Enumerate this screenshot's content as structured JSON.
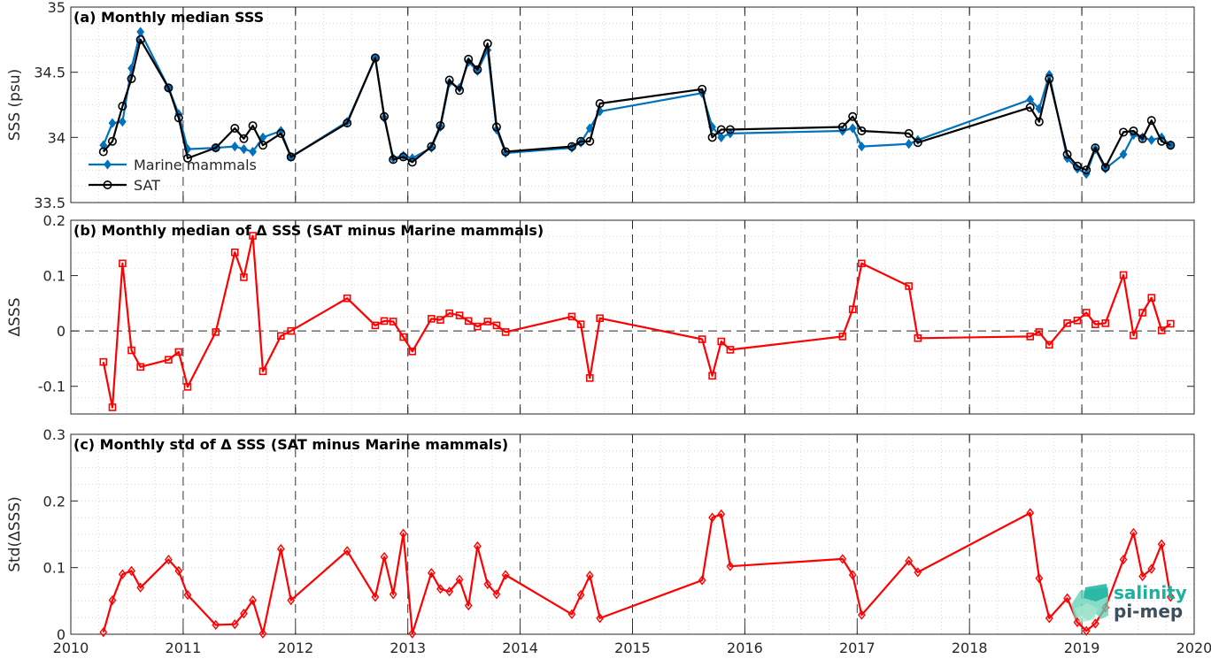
{
  "chart_data": [
    {
      "type": "line",
      "title": "(a) Monthly median SSS",
      "ylabel": "SSS (psu)",
      "xlim": [
        2010,
        2020
      ],
      "ylim": [
        33.5,
        35
      ],
      "yticks": [
        33.5,
        34,
        34.5,
        35
      ],
      "ytick_labels": [
        "33.5",
        "34",
        "34.5",
        "35"
      ],
      "grid": true,
      "legend": "bottom-left",
      "series": [
        {
          "name": "Marine mammals",
          "color": "#0072BD",
          "marker": "diamond",
          "x": [
            2010.29,
            2010.37,
            2010.46,
            2010.54,
            2010.62,
            2010.87,
            2010.96,
            2011.04,
            2011.29,
            2011.46,
            2011.54,
            2011.62,
            2011.71,
            2011.87,
            2011.96,
            2012.46,
            2012.71,
            2012.79,
            2012.87,
            2012.96,
            2013.04,
            2013.21,
            2013.29,
            2013.37,
            2013.46,
            2013.54,
            2013.62,
            2013.71,
            2013.79,
            2013.87,
            2014.46,
            2014.54,
            2014.62,
            2014.71,
            2015.62,
            2015.71,
            2015.79,
            2015.87,
            2016.87,
            2016.96,
            2017.04,
            2017.46,
            2017.54,
            2018.54,
            2018.62,
            2018.71,
            2018.87,
            2018.96,
            2019.04,
            2019.12,
            2019.21,
            2019.37,
            2019.46,
            2019.54,
            2019.62,
            2019.71,
            2019.79
          ],
          "y": [
            33.94,
            34.11,
            34.12,
            34.53,
            34.81,
            34.38,
            34.18,
            33.91,
            33.92,
            33.93,
            33.91,
            33.89,
            34.0,
            34.05,
            33.85,
            34.12,
            34.61,
            34.15,
            33.84,
            33.86,
            33.84,
            33.92,
            34.08,
            34.42,
            34.38,
            34.58,
            34.51,
            34.67,
            34.06,
            33.88,
            33.92,
            33.96,
            34.07,
            34.2,
            34.34,
            34.08,
            34.0,
            34.03,
            34.05,
            34.07,
            33.93,
            33.95,
            33.98,
            34.29,
            34.22,
            34.48,
            33.84,
            33.76,
            33.72,
            33.91,
            33.76,
            33.87,
            34.02,
            34.0,
            33.98,
            34.0,
            33.94
          ]
        },
        {
          "name": "SAT",
          "color": "#000000",
          "marker": "circle",
          "x": [
            2010.29,
            2010.37,
            2010.46,
            2010.54,
            2010.62,
            2010.87,
            2010.96,
            2011.04,
            2011.29,
            2011.46,
            2011.54,
            2011.62,
            2011.71,
            2011.87,
            2011.96,
            2012.46,
            2012.71,
            2012.79,
            2012.87,
            2012.96,
            2013.04,
            2013.21,
            2013.29,
            2013.37,
            2013.46,
            2013.54,
            2013.62,
            2013.71,
            2013.79,
            2013.87,
            2014.46,
            2014.54,
            2014.62,
            2014.71,
            2015.62,
            2015.71,
            2015.79,
            2015.87,
            2016.87,
            2016.96,
            2017.04,
            2017.46,
            2017.54,
            2018.54,
            2018.62,
            2018.71,
            2018.87,
            2018.96,
            2019.04,
            2019.12,
            2019.21,
            2019.37,
            2019.46,
            2019.54,
            2019.62,
            2019.71,
            2019.79
          ],
          "y": [
            33.89,
            33.97,
            34.24,
            34.45,
            34.75,
            34.38,
            34.15,
            33.84,
            33.92,
            34.07,
            33.99,
            34.09,
            33.94,
            34.03,
            33.85,
            34.11,
            34.61,
            34.16,
            33.83,
            33.85,
            33.81,
            33.93,
            34.09,
            34.44,
            34.36,
            34.6,
            34.52,
            34.72,
            34.08,
            33.89,
            33.93,
            33.97,
            33.97,
            34.26,
            34.37,
            34.0,
            34.06,
            34.06,
            34.08,
            34.16,
            34.05,
            34.03,
            33.96,
            34.23,
            34.12,
            34.45,
            33.87,
            33.78,
            33.75,
            33.92,
            33.77,
            34.04,
            34.05,
            33.99,
            34.13,
            33.97,
            33.94
          ]
        }
      ]
    },
    {
      "type": "line",
      "title": "(b) Monthly median of Δ SSS (SAT minus Marine mammals)",
      "ylabel": "ΔSSS",
      "xlim": [
        2010,
        2020
      ],
      "ylim": [
        -0.15,
        0.2
      ],
      "yticks": [
        -0.1,
        0,
        0.1,
        0.2
      ],
      "ytick_labels": [
        "-0.1",
        "0",
        "0.1",
        "0.2"
      ],
      "grid": true,
      "series": [
        {
          "color": "#FF0000",
          "marker": "square",
          "x": [
            2010.29,
            2010.37,
            2010.46,
            2010.54,
            2010.62,
            2010.87,
            2010.96,
            2011.04,
            2011.29,
            2011.46,
            2011.54,
            2011.62,
            2011.71,
            2011.87,
            2011.96,
            2012.46,
            2012.71,
            2012.79,
            2012.87,
            2012.96,
            2013.04,
            2013.21,
            2013.29,
            2013.37,
            2013.46,
            2013.54,
            2013.62,
            2013.71,
            2013.79,
            2013.87,
            2014.46,
            2014.54,
            2014.62,
            2014.71,
            2015.62,
            2015.71,
            2015.79,
            2015.87,
            2016.87,
            2016.96,
            2017.04,
            2017.46,
            2017.54,
            2018.54,
            2018.62,
            2018.71,
            2018.87,
            2018.96,
            2019.04,
            2019.12,
            2019.21,
            2019.37,
            2019.46,
            2019.54,
            2019.62,
            2019.71,
            2019.79
          ],
          "y": [
            -0.056,
            -0.138,
            0.122,
            -0.035,
            -0.065,
            -0.052,
            -0.038,
            -0.101,
            -0.002,
            0.142,
            0.097,
            0.172,
            -0.073,
            -0.009,
            0.0,
            0.059,
            0.01,
            0.018,
            0.017,
            -0.011,
            -0.037,
            0.022,
            0.02,
            0.032,
            0.028,
            0.018,
            0.008,
            0.017,
            0.01,
            -0.002,
            0.026,
            0.012,
            -0.085,
            0.023,
            -0.015,
            -0.081,
            -0.019,
            -0.034,
            -0.01,
            0.039,
            0.122,
            0.081,
            -0.013,
            -0.01,
            -0.002,
            -0.025,
            0.014,
            0.019,
            0.033,
            0.012,
            0.014,
            0.101,
            -0.008,
            0.033,
            0.06,
            0.001,
            0.013
          ]
        }
      ]
    },
    {
      "type": "line",
      "title": "(c) Monthly std of Δ SSS (SAT minus Marine mammals)",
      "ylabel": "Std(ΔSSS)",
      "xlabel": "",
      "xlim": [
        2010,
        2020
      ],
      "ylim": [
        0,
        0.3
      ],
      "yticks": [
        0,
        0.1,
        0.2,
        0.3
      ],
      "ytick_labels": [
        "0",
        "0.1",
        "0.2",
        "0.3"
      ],
      "xticks": [
        2010,
        2011,
        2012,
        2013,
        2014,
        2015,
        2016,
        2017,
        2018,
        2019,
        2020
      ],
      "xtick_labels": [
        "2010",
        "2011",
        "2012",
        "2013",
        "2014",
        "2015",
        "2016",
        "2017",
        "2018",
        "2019",
        "2020"
      ],
      "grid": true,
      "series": [
        {
          "color": "#FF0000",
          "marker": "diamond",
          "x": [
            2010.29,
            2010.37,
            2010.46,
            2010.54,
            2010.62,
            2010.87,
            2010.96,
            2011.04,
            2011.29,
            2011.46,
            2011.54,
            2011.62,
            2011.71,
            2011.87,
            2011.96,
            2012.46,
            2012.71,
            2012.79,
            2012.87,
            2012.96,
            2013.04,
            2013.21,
            2013.29,
            2013.37,
            2013.46,
            2013.54,
            2013.62,
            2013.71,
            2013.79,
            2013.87,
            2014.46,
            2014.54,
            2014.62,
            2014.71,
            2015.62,
            2015.71,
            2015.79,
            2015.87,
            2016.87,
            2016.96,
            2017.04,
            2017.46,
            2017.54,
            2018.54,
            2018.62,
            2018.71,
            2018.87,
            2018.96,
            2019.04,
            2019.12,
            2019.21,
            2019.37,
            2019.46,
            2019.54,
            2019.62,
            2019.71,
            2019.79
          ],
          "y": [
            0.003,
            0.051,
            0.09,
            0.095,
            0.07,
            0.112,
            0.095,
            0.059,
            0.014,
            0.015,
            0.031,
            0.051,
            0.001,
            0.128,
            0.051,
            0.125,
            0.056,
            0.116,
            0.06,
            0.151,
            0.001,
            0.092,
            0.068,
            0.064,
            0.082,
            0.043,
            0.132,
            0.075,
            0.06,
            0.089,
            0.03,
            0.059,
            0.088,
            0.024,
            0.081,
            0.175,
            0.18,
            0.102,
            0.113,
            0.089,
            0.029,
            0.11,
            0.093,
            0.182,
            0.084,
            0.024,
            0.054,
            0.018,
            0.005,
            0.016,
            0.04,
            0.112,
            0.152,
            0.087,
            0.098,
            0.135,
            0.056
          ]
        }
      ]
    }
  ],
  "logo": {
    "line1": "salinity",
    "line2": "pi-mep",
    "color1": "#1BB1A0",
    "color2": "#3D4E5C"
  },
  "colors": {
    "grid": "#d0d0d0",
    "axis": "#262626",
    "zero_line": "#262626"
  }
}
